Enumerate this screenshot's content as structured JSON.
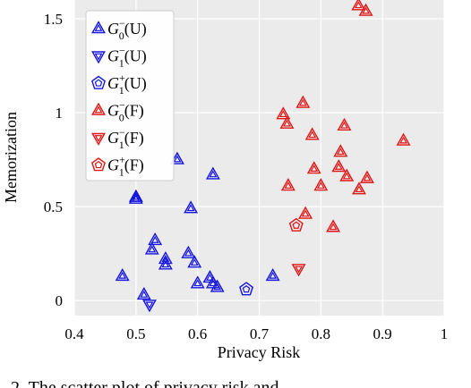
{
  "colors": {
    "unlearned": "#1515e0",
    "forgotten": "#e01515",
    "plot_bg": "#ebebeb",
    "grid": "#ffffff"
  },
  "chart_data": {
    "type": "scatter",
    "xlabel": "Privacy Risk",
    "ylabel": "Memorization",
    "xlim": [
      0.4,
      1.0
    ],
    "ylim": [
      -0.08,
      1.6
    ],
    "xticks": [
      "0.4",
      "0.5",
      "0.6",
      "0.7",
      "0.8",
      "0.9",
      "1"
    ],
    "yticks": [
      "0",
      "0.5",
      "1",
      "1.5"
    ],
    "grid": true,
    "legend_position": "top-left",
    "series": [
      {
        "base": "G",
        "sub": "0",
        "sup": "−",
        "tag": "(U)",
        "marker": "triangle-up",
        "color": "#1515e0",
        "points": [
          [
            0.478,
            0.13
          ],
          [
            0.5,
            0.55
          ],
          [
            0.5,
            0.54
          ],
          [
            0.513,
            0.03
          ],
          [
            0.526,
            0.27
          ],
          [
            0.531,
            0.32
          ],
          [
            0.548,
            0.22
          ],
          [
            0.548,
            0.19
          ],
          [
            0.567,
            0.75
          ],
          [
            0.585,
            0.25
          ],
          [
            0.589,
            0.49
          ],
          [
            0.595,
            0.2
          ],
          [
            0.6,
            0.09
          ],
          [
            0.62,
            0.12
          ],
          [
            0.625,
            0.67
          ],
          [
            0.625,
            0.09
          ],
          [
            0.632,
            0.07
          ],
          [
            0.722,
            0.13
          ]
        ]
      },
      {
        "base": "G",
        "sub": "1",
        "sup": "−",
        "tag": "(U)",
        "marker": "triangle-down",
        "color": "#1515e0",
        "points": [
          [
            0.522,
            -0.02
          ]
        ]
      },
      {
        "base": "G",
        "sub": "1",
        "sup": "+",
        "tag": "(U)",
        "marker": "pentagon",
        "color": "#1515e0",
        "points": [
          [
            0.679,
            0.06
          ]
        ]
      },
      {
        "base": "G",
        "sub": "0",
        "sup": "−",
        "tag": "(F)",
        "marker": "triangle-up",
        "color": "#e01515",
        "points": [
          [
            0.739,
            0.99
          ],
          [
            0.745,
            0.94
          ],
          [
            0.747,
            0.61
          ],
          [
            0.771,
            1.05
          ],
          [
            0.775,
            0.46
          ],
          [
            0.786,
            0.88
          ],
          [
            0.789,
            0.7
          ],
          [
            0.8,
            0.61
          ],
          [
            0.82,
            0.39
          ],
          [
            0.829,
            0.71
          ],
          [
            0.832,
            0.79
          ],
          [
            0.838,
            0.93
          ],
          [
            0.842,
            0.66
          ],
          [
            0.861,
            1.57
          ],
          [
            0.862,
            0.59
          ],
          [
            0.873,
            1.54
          ],
          [
            0.875,
            0.65
          ],
          [
            0.934,
            0.85
          ]
        ]
      },
      {
        "base": "G",
        "sub": "1",
        "sup": "−",
        "tag": "(F)",
        "marker": "triangle-down",
        "color": "#e01515",
        "points": [
          [
            0.764,
            0.17
          ]
        ]
      },
      {
        "base": "G",
        "sub": "1",
        "sup": "+",
        "tag": "(F)",
        "marker": "pentagon",
        "color": "#e01515",
        "points": [
          [
            0.76,
            0.4
          ]
        ]
      }
    ]
  },
  "caption": "2. The scatter plot of privacy risk and"
}
